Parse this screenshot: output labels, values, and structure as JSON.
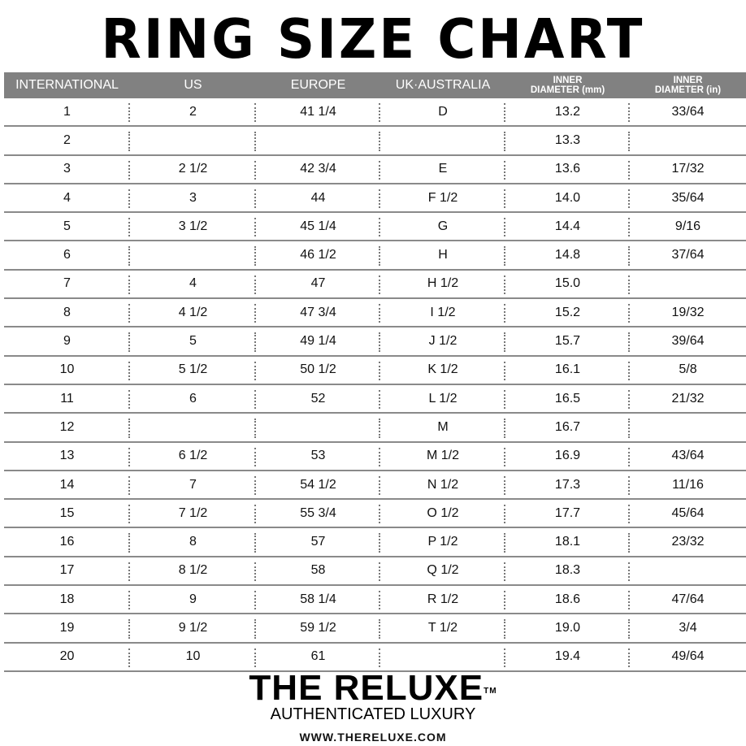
{
  "title": "RING SIZE CHART",
  "headers": [
    "INTERNATIONAL",
    "US",
    "EUROPE",
    "UK·AUSTRALIA",
    [
      "INNER",
      "DIAMETER (mm)"
    ],
    [
      "INNER",
      "DIAMETER (in)"
    ]
  ],
  "rows": [
    [
      "1",
      "2",
      "41 1/4",
      "D",
      "13.2",
      "33/64"
    ],
    [
      "2",
      "",
      "",
      "",
      "13.3",
      ""
    ],
    [
      "3",
      "2 1/2",
      "42 3/4",
      "E",
      "13.6",
      "17/32"
    ],
    [
      "4",
      "3",
      "44",
      "F 1/2",
      "14.0",
      "35/64"
    ],
    [
      "5",
      "3 1/2",
      "45 1/4",
      "G",
      "14.4",
      "9/16"
    ],
    [
      "6",
      "",
      "46 1/2",
      "H",
      "14.8",
      "37/64"
    ],
    [
      "7",
      "4",
      "47",
      "H 1/2",
      "15.0",
      ""
    ],
    [
      "8",
      "4 1/2",
      "47 3/4",
      "I 1/2",
      "15.2",
      "19/32"
    ],
    [
      "9",
      "5",
      "49 1/4",
      "J 1/2",
      "15.7",
      "39/64"
    ],
    [
      "10",
      "5 1/2",
      "50 1/2",
      "K 1/2",
      "16.1",
      "5/8"
    ],
    [
      "11",
      "6",
      "52",
      "L 1/2",
      "16.5",
      "21/32"
    ],
    [
      "12",
      "",
      "",
      "M",
      "16.7",
      ""
    ],
    [
      "13",
      "6 1/2",
      "53",
      "M 1/2",
      "16.9",
      "43/64"
    ],
    [
      "14",
      "7",
      "54 1/2",
      "N 1/2",
      "17.3",
      "11/16"
    ],
    [
      "15",
      "7 1/2",
      "55 3/4",
      "O 1/2",
      "17.7",
      "45/64"
    ],
    [
      "16",
      "8",
      "57",
      "P 1/2",
      "18.1",
      "23/32"
    ],
    [
      "17",
      "8 1/2",
      "58",
      "Q 1/2",
      "18.3",
      ""
    ],
    [
      "18",
      "9",
      "58 1/4",
      "R 1/2",
      "18.6",
      "47/64"
    ],
    [
      "19",
      "9 1/2",
      "59 1/2",
      "T 1/2",
      "19.0",
      "3/4"
    ],
    [
      "20",
      "10",
      "61",
      "",
      "19.4",
      "49/64"
    ]
  ],
  "logo": {
    "brand": "THE RELUXE",
    "tm": "TM",
    "tagline": "AUTHENTICATED LUXURY",
    "url": "WWW.THERELUXE.COM"
  },
  "colors": {
    "header_bg": "#818181",
    "header_text": "#ffffff",
    "row_line": "#8a8a8a"
  }
}
